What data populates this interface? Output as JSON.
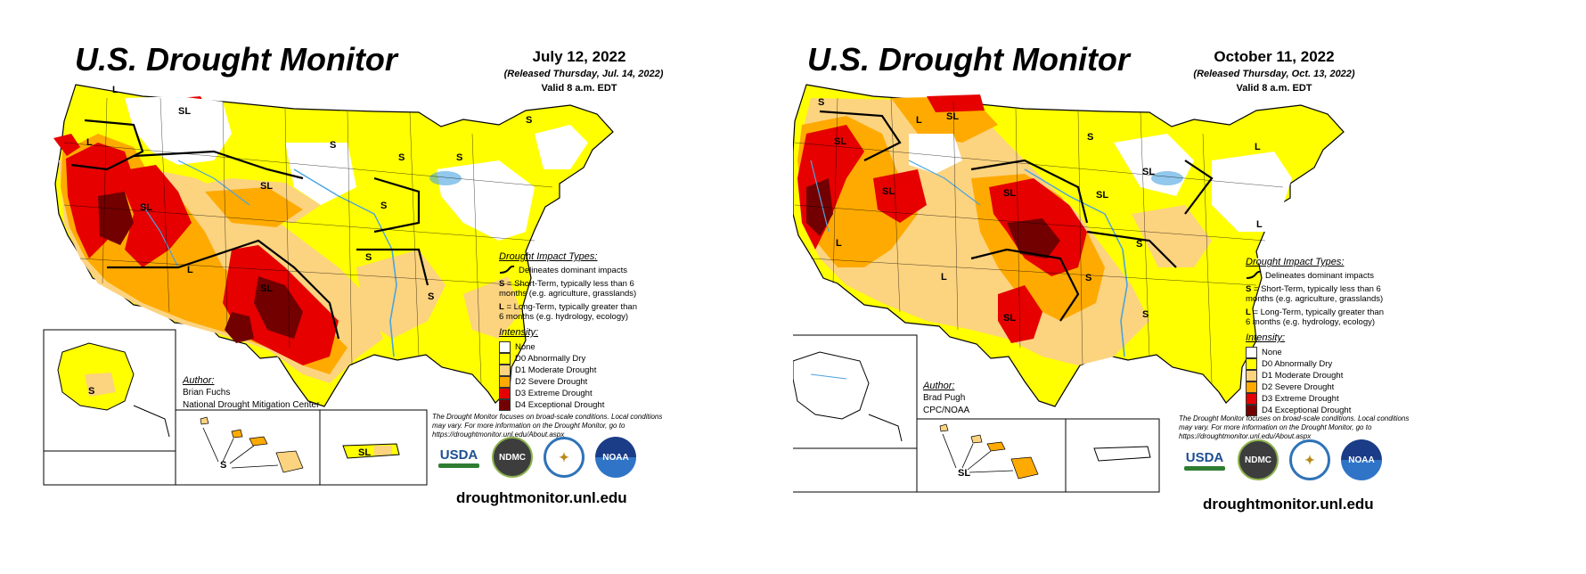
{
  "colors": {
    "none": "#ffffff",
    "d0": "#ffff00",
    "d1": "#fcd37f",
    "d2": "#ffaa00",
    "d3": "#e60000",
    "d4": "#730000",
    "water": "#4aa3df",
    "boundary": "#000000"
  },
  "panels": [
    {
      "title": "U.S. Drought Monitor",
      "date": "July 12, 2022",
      "released": "(Released Thursday, Jul. 14, 2022)",
      "valid": "Valid 8 a.m. EDT",
      "impact_legend": {
        "heading": "Drought Impact Types:",
        "delineates": "Delineates dominant impacts",
        "s_label": "S",
        "s_text": " = Short-Term, typically less than 6 months (e.g. agriculture, grasslands)",
        "l_label": "L",
        "l_text": " = Long-Term, typically greater than 6 months (e.g. hydrology, ecology)"
      },
      "intensity": {
        "heading": "Intensity:",
        "items": [
          "None",
          "D0 Abnormally Dry",
          "D1 Moderate Drought",
          "D2 Severe Drought",
          "D3 Extreme Drought",
          "D4 Exceptional Drought"
        ]
      },
      "author": {
        "heading": "Author:",
        "name": "Brian Fuchs",
        "org": "National Drought Mitigation Center"
      },
      "disclaimer": "The Drought Monitor focuses on broad-scale conditions. Local conditions may vary. For more information on the Drought Monitor, go to https://droughtmonitor.unl.edu/About.aspx",
      "logos": {
        "usda": "USDA",
        "ndmc": "NDMC",
        "noaa": "NOAA"
      },
      "url": "droughtmonitor.unl.edu",
      "map_labels": [
        "L",
        "SL",
        "L",
        "S",
        "S",
        "S",
        "SL",
        "SL",
        "S",
        "S",
        "L",
        "SL",
        "S",
        "S",
        "S",
        "S",
        "SL"
      ]
    },
    {
      "title": "U.S. Drought Monitor",
      "date": "October 11, 2022",
      "released": "(Released Thursday, Oct. 13, 2022)",
      "valid": "Valid 8 a.m. EDT",
      "impact_legend": {
        "heading": "Drought Impact Types:",
        "delineates": "Delineates dominant impacts",
        "s_label": "S",
        "s_text": " = Short-Term, typically less than 6 months (e.g. agriculture, grasslands)",
        "l_label": "L",
        "l_text": " = Long-Term, typically greater than 6 months (e.g. hydrology, ecology)"
      },
      "intensity": {
        "heading": "Intensity:",
        "items": [
          "None",
          "D0 Abnormally Dry",
          "D1 Moderate Drought",
          "D2 Severe Drought",
          "D3 Extreme Drought",
          "D4 Exceptional Drought"
        ]
      },
      "author": {
        "heading": "Author:",
        "name": "Brad Pugh",
        "org": "CPC/NOAA"
      },
      "disclaimer": "The Drought Monitor focuses on broad-scale conditions. Local conditions may vary. For more information on the Drought Monitor, go to https://droughtmonitor.unl.edu/About.aspx",
      "logos": {
        "usda": "USDA",
        "ndmc": "NDMC",
        "noaa": "NOAA"
      },
      "url": "droughtmonitor.unl.edu",
      "map_labels": [
        "S",
        "SL",
        "L",
        "SL",
        "S",
        "L",
        "SL",
        "SL",
        "SL",
        "SL",
        "L",
        "L",
        "L",
        "S",
        "SL",
        "S",
        "S",
        "SL"
      ]
    }
  ]
}
